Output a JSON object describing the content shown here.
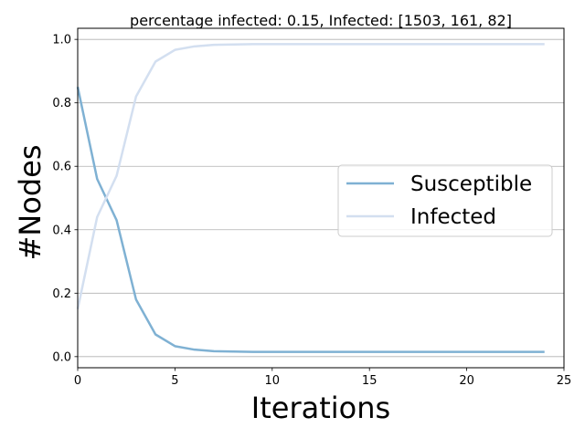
{
  "chart_data": {
    "type": "line",
    "title": "percentage infected: 0.15, Infected: [1503, 161, 82]",
    "xlabel": "Iterations",
    "ylabel": "#Nodes",
    "xlim": [
      0,
      25
    ],
    "ylim": [
      -0.035,
      1.035
    ],
    "xticks": [
      0,
      5,
      10,
      15,
      20,
      25
    ],
    "yticks": [
      0.0,
      0.2,
      0.4,
      0.6,
      0.8,
      1.0
    ],
    "xtick_labels": [
      "0",
      "5",
      "10",
      "15",
      "20",
      "25"
    ],
    "ytick_labels": [
      "0.0",
      "0.2",
      "0.4",
      "0.6",
      "0.8",
      "1.0"
    ],
    "grid": "horizontal",
    "legend_position": "center-right",
    "x": [
      0,
      1,
      2,
      3,
      4,
      5,
      6,
      7,
      8,
      9,
      10,
      11,
      12,
      13,
      14,
      15,
      16,
      17,
      18,
      19,
      20,
      21,
      22,
      23,
      24
    ],
    "series": [
      {
        "name": "Susceptible",
        "color": "#7fb1d3",
        "values": [
          0.85,
          0.56,
          0.43,
          0.18,
          0.07,
          0.033,
          0.022,
          0.017,
          0.016,
          0.015,
          0.015,
          0.015,
          0.015,
          0.015,
          0.015,
          0.015,
          0.015,
          0.015,
          0.015,
          0.015,
          0.015,
          0.015,
          0.015,
          0.015,
          0.015
        ]
      },
      {
        "name": "Infected",
        "color": "#d3dff0",
        "values": [
          0.15,
          0.44,
          0.57,
          0.82,
          0.93,
          0.967,
          0.978,
          0.983,
          0.984,
          0.985,
          0.985,
          0.985,
          0.985,
          0.985,
          0.985,
          0.985,
          0.985,
          0.985,
          0.985,
          0.985,
          0.985,
          0.985,
          0.985,
          0.985,
          0.985
        ]
      }
    ]
  }
}
